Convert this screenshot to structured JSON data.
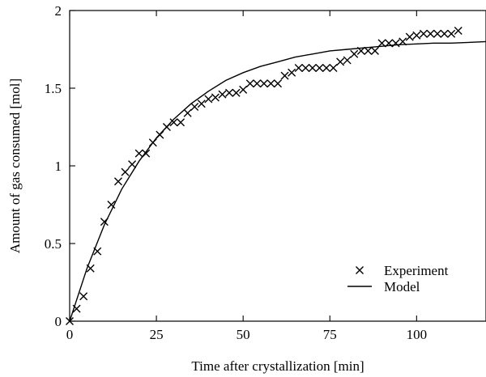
{
  "chart_data": {
    "type": "scatter",
    "title": "",
    "xlabel": "Time after crystallization [min]",
    "ylabel": "Amount of gas consumed [mol]",
    "xlim": [
      0,
      120
    ],
    "ylim": [
      0,
      2
    ],
    "xticks": [
      0,
      25,
      50,
      75,
      100
    ],
    "yticks": [
      0,
      0.5,
      1,
      1.5,
      2
    ],
    "xtick_labels": [
      "0",
      "25",
      "50",
      "75",
      "100"
    ],
    "ytick_labels": [
      "0",
      "0.5",
      "1",
      "1.5",
      "2"
    ],
    "grid": false,
    "legend_position": "bottom-right",
    "series": [
      {
        "name": "Experiment",
        "kind": "markers",
        "marker": "x",
        "x": [
          0,
          2,
          4,
          6,
          8,
          10,
          12,
          14,
          16,
          18,
          20,
          22,
          24,
          26,
          28,
          30,
          32,
          34,
          36,
          38,
          40,
          42,
          44,
          46,
          48,
          50,
          52,
          54,
          56,
          58,
          60,
          62,
          64,
          66,
          68,
          70,
          72,
          74,
          76,
          78,
          80,
          82,
          84,
          86,
          88,
          90,
          92,
          94,
          96,
          98,
          100,
          102,
          104,
          106,
          108,
          110,
          112
        ],
        "y": [
          0,
          0.08,
          0.16,
          0.34,
          0.45,
          0.64,
          0.75,
          0.9,
          0.96,
          1.01,
          1.08,
          1.08,
          1.15,
          1.2,
          1.25,
          1.28,
          1.28,
          1.34,
          1.38,
          1.4,
          1.43,
          1.44,
          1.46,
          1.47,
          1.47,
          1.49,
          1.53,
          1.53,
          1.53,
          1.53,
          1.53,
          1.58,
          1.6,
          1.63,
          1.63,
          1.63,
          1.63,
          1.63,
          1.63,
          1.67,
          1.68,
          1.72,
          1.74,
          1.74,
          1.74,
          1.79,
          1.79,
          1.79,
          1.8,
          1.83,
          1.84,
          1.85,
          1.85,
          1.85,
          1.85,
          1.85,
          1.87
        ]
      },
      {
        "name": "Model",
        "kind": "line",
        "x": [
          0,
          5,
          10,
          15,
          20,
          25,
          30,
          35,
          40,
          45,
          50,
          55,
          60,
          65,
          70,
          75,
          80,
          85,
          90,
          95,
          100,
          105,
          110,
          115,
          120
        ],
        "y": [
          0,
          0.34,
          0.62,
          0.85,
          1.03,
          1.18,
          1.3,
          1.4,
          1.48,
          1.55,
          1.6,
          1.64,
          1.67,
          1.7,
          1.72,
          1.74,
          1.75,
          1.76,
          1.77,
          1.78,
          1.785,
          1.79,
          1.79,
          1.795,
          1.8
        ]
      }
    ]
  }
}
